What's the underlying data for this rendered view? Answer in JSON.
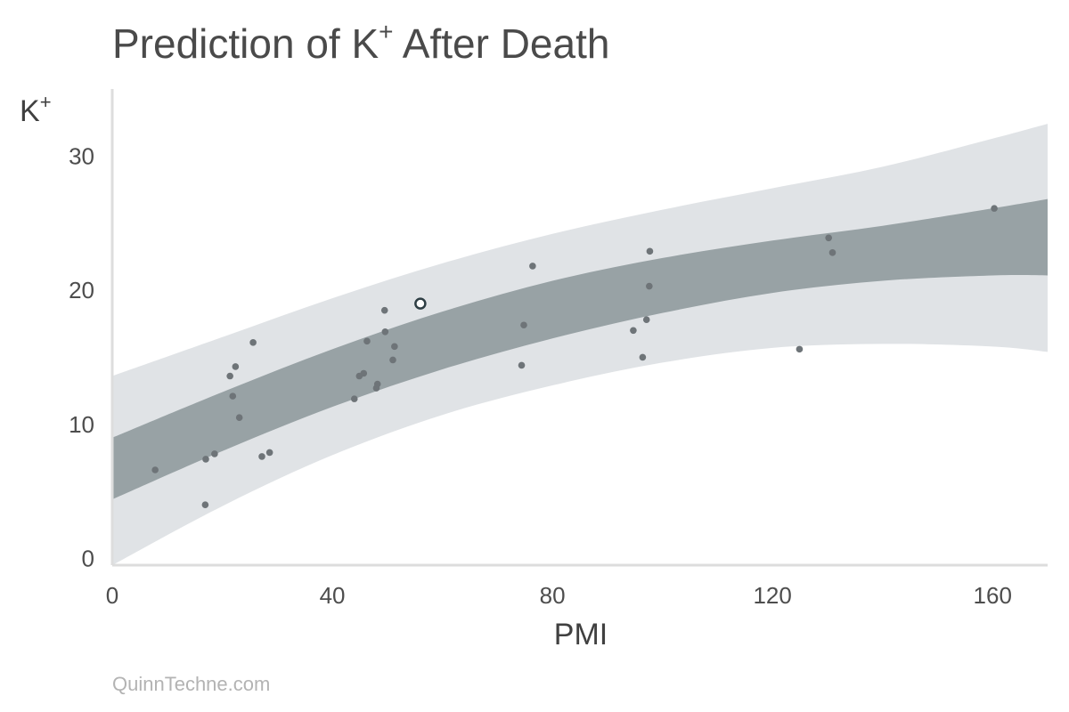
{
  "title": {
    "main": "Prediction of K",
    "sup": "+",
    "rest": " After Death"
  },
  "watermark": "QuinnTechne.com",
  "colors": {
    "outer_band": "#e0e3e6",
    "inner_band": "#98a2a5",
    "point": "#6e7478",
    "highlight_stroke": "#2e3e44",
    "axis": "#dddddd"
  },
  "chart_data": {
    "type": "scatter",
    "title": "Prediction of K+ After Death",
    "xlabel": "PMI",
    "ylabel": "K+",
    "xlim": [
      0,
      170
    ],
    "ylim": [
      -0.5,
      35
    ],
    "xticks": [
      0,
      40,
      80,
      120,
      160
    ],
    "yticks": [
      0,
      10,
      20,
      30
    ],
    "grid": false,
    "points": [
      {
        "x": 7.8,
        "y": 6.6
      },
      {
        "x": 16.9,
        "y": 4.0
      },
      {
        "x": 17.0,
        "y": 7.4
      },
      {
        "x": 18.6,
        "y": 7.8
      },
      {
        "x": 21.4,
        "y": 13.6
      },
      {
        "x": 21.9,
        "y": 12.1
      },
      {
        "x": 22.4,
        "y": 14.3
      },
      {
        "x": 23.1,
        "y": 10.5
      },
      {
        "x": 25.6,
        "y": 16.1
      },
      {
        "x": 27.2,
        "y": 7.6
      },
      {
        "x": 28.6,
        "y": 7.9
      },
      {
        "x": 44.0,
        "y": 11.9
      },
      {
        "x": 44.9,
        "y": 13.6
      },
      {
        "x": 45.7,
        "y": 13.8
      },
      {
        "x": 46.3,
        "y": 16.2
      },
      {
        "x": 48.0,
        "y": 12.7
      },
      {
        "x": 48.2,
        "y": 13.0
      },
      {
        "x": 49.5,
        "y": 18.5
      },
      {
        "x": 49.6,
        "y": 16.9
      },
      {
        "x": 51.0,
        "y": 14.8
      },
      {
        "x": 51.3,
        "y": 15.8
      },
      {
        "x": 74.4,
        "y": 14.4
      },
      {
        "x": 74.8,
        "y": 17.4
      },
      {
        "x": 76.4,
        "y": 21.8
      },
      {
        "x": 94.7,
        "y": 17.0
      },
      {
        "x": 96.4,
        "y": 15.0
      },
      {
        "x": 97.1,
        "y": 17.8
      },
      {
        "x": 97.6,
        "y": 20.3
      },
      {
        "x": 97.7,
        "y": 22.9
      },
      {
        "x": 124.9,
        "y": 15.6
      },
      {
        "x": 130.2,
        "y": 23.9
      },
      {
        "x": 130.9,
        "y": 22.8
      },
      {
        "x": 160.3,
        "y": 26.1
      }
    ],
    "highlight_point": {
      "x": 56.0,
      "y": 19.0
    },
    "prediction_band_outer": {
      "x": [
        0,
        20,
        40,
        60,
        80,
        100,
        120,
        140,
        160,
        170
      ],
      "lower": [
        -0.5,
        3.9,
        7.7,
        10.7,
        12.9,
        14.6,
        15.7,
        16.0,
        15.8,
        15.4
      ],
      "upper": [
        13.6,
        16.5,
        19.4,
        22.0,
        24.2,
        26.0,
        27.6,
        29.2,
        31.3,
        32.4
      ]
    },
    "prediction_band_inner": {
      "x": [
        0,
        20,
        40,
        60,
        80,
        100,
        120,
        140,
        160,
        170
      ],
      "lower": [
        4.4,
        8.0,
        11.3,
        14.1,
        16.4,
        18.3,
        19.8,
        20.7,
        21.1,
        21.1
      ],
      "upper": [
        9.0,
        12.4,
        15.6,
        18.4,
        20.7,
        22.4,
        23.7,
        24.8,
        26.1,
        26.8
      ]
    }
  }
}
